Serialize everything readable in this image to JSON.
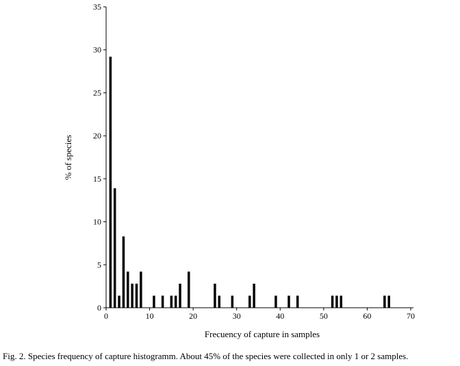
{
  "chart_data": {
    "type": "bar",
    "xlabel": "Frecuency of capture in samples",
    "ylabel": "% of species",
    "xlim": [
      0,
      70
    ],
    "ylim": [
      0,
      35
    ],
    "x_ticks": [
      0,
      10,
      20,
      30,
      40,
      50,
      60,
      70
    ],
    "y_ticks": [
      0,
      5,
      10,
      15,
      20,
      25,
      30,
      35
    ],
    "grid": false,
    "bar_color": "#000000",
    "x": [
      1,
      2,
      3,
      4,
      5,
      6,
      7,
      8,
      11,
      13,
      15,
      16,
      17,
      19,
      25,
      26,
      29,
      33,
      34,
      39,
      42,
      44,
      52,
      53,
      54,
      64,
      65
    ],
    "values": [
      29.2,
      13.9,
      1.4,
      8.3,
      4.2,
      2.8,
      2.8,
      4.2,
      1.4,
      1.4,
      1.4,
      1.4,
      2.8,
      4.2,
      2.8,
      1.4,
      1.4,
      1.4,
      2.8,
      1.4,
      1.4,
      1.4,
      1.4,
      1.4,
      1.4,
      1.4,
      1.4
    ]
  },
  "caption": "Fig. 2. Species frequency of capture histogramm.  About 45% of the species were collected in only 1 or 2 samples."
}
